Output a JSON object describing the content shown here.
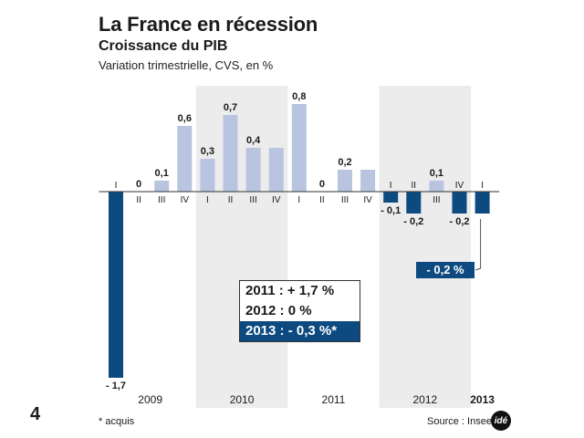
{
  "header": {
    "title": "La France en récession",
    "subtitle": "Croissance du PIB",
    "description": "Variation trimestrielle, CVS, en %"
  },
  "page_number": "4",
  "footnote": "* acquis",
  "source": "Source : Insee",
  "logo_text": "idé",
  "colors": {
    "positive": "#b8c4e0",
    "negative": "#0d4a80",
    "shade": "#ececec"
  },
  "totals": {
    "row1": "2011 : + 1,7 %",
    "row2": "2012 : 0 %",
    "row3": "2013 : - 0,3 %*"
  },
  "acquis_label": "- 0,2 %",
  "chart_data": {
    "type": "bar",
    "categories": [
      "I",
      "II",
      "III",
      "IV",
      "I",
      "II",
      "III",
      "IV",
      "I",
      "II",
      "III",
      "IV",
      "I",
      "II",
      "III",
      "IV",
      "I"
    ],
    "years": [
      "2009",
      "2009",
      "2009",
      "2009",
      "2010",
      "2010",
      "2010",
      "2010",
      "2011",
      "2011",
      "2011",
      "2011",
      "2012",
      "2012",
      "2012",
      "2012",
      "2013"
    ],
    "values": [
      -1.7,
      0,
      0.1,
      0.6,
      0.3,
      0.7,
      0.4,
      0.4,
      0.8,
      0,
      0.2,
      0.2,
      -0.1,
      -0.2,
      0.1,
      -0.2,
      -0.2
    ],
    "value_labels": [
      "- 1,7",
      "0",
      "0,1",
      "0,6",
      "0,3",
      "0,7",
      "0,4",
      "",
      "0,8",
      "0",
      "0,2",
      "",
      "- 0,1",
      "- 0,2",
      "0,1",
      "- 0,2",
      ""
    ],
    "year_groups": [
      {
        "label": "2009",
        "bold": false,
        "shaded": false
      },
      {
        "label": "2010",
        "bold": false,
        "shaded": true
      },
      {
        "label": "2011",
        "bold": false,
        "shaded": false
      },
      {
        "label": "2012",
        "bold": false,
        "shaded": true
      },
      {
        "label": "2013",
        "bold": true,
        "shaded": false
      }
    ],
    "title": "Croissance du PIB",
    "ylabel": "Variation trimestrielle, CVS, en %",
    "ylim": [
      -1.7,
      0.8
    ],
    "grid": false,
    "legend": "none"
  }
}
